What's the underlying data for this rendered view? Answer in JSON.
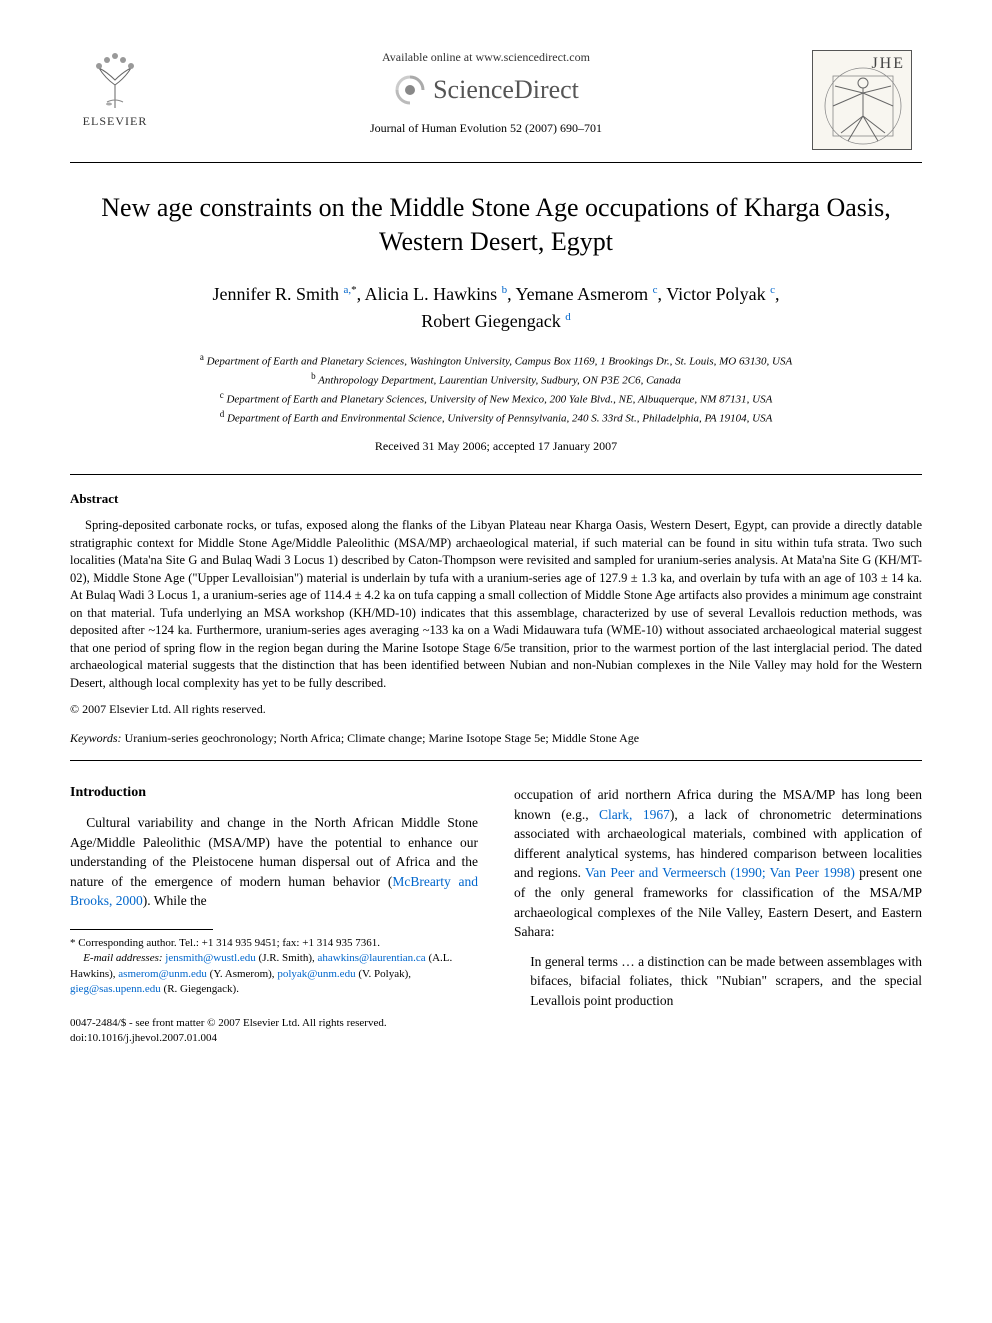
{
  "header": {
    "available_online": "Available online at www.sciencedirect.com",
    "scidirect": "ScienceDirect",
    "journal_ref": "Journal of Human Evolution 52 (2007) 690–701",
    "elsevier_label": "ELSEVIER",
    "jhe_abbrev": "JHE",
    "colors": {
      "link": "#0066cc",
      "text": "#000000",
      "muted": "#555555"
    }
  },
  "article": {
    "title": "New age constraints on the Middle Stone Age occupations of Kharga Oasis, Western Desert, Egypt",
    "authors_html": "Jennifer R. Smith <sup><a class='sup-link'>a,</a>*</sup>, Alicia L. Hawkins <sup><a class='sup-link'>b</a></sup>, Yemane Asmerom <sup><a class='sup-link'>c</a></sup>, Victor Polyak <sup><a class='sup-link'>c</a></sup>,<br>Robert Giegengack <sup><a class='sup-link'>d</a></sup>",
    "affiliations": [
      {
        "sup": "a",
        "text": "Department of Earth and Planetary Sciences, Washington University, Campus Box 1169, 1 Brookings Dr., St. Louis, MO 63130, USA"
      },
      {
        "sup": "b",
        "text": "Anthropology Department, Laurentian University, Sudbury, ON P3E 2C6, Canada"
      },
      {
        "sup": "c",
        "text": "Department of Earth and Planetary Sciences, University of New Mexico, 200 Yale Blvd., NE, Albuquerque, NM 87131, USA"
      },
      {
        "sup": "d",
        "text": "Department of Earth and Environmental Science, University of Pennsylvania, 240 S. 33rd St., Philadelphia, PA 19104, USA"
      }
    ],
    "received": "Received 31 May 2006; accepted 17 January 2007"
  },
  "abstract": {
    "label": "Abstract",
    "body": "Spring-deposited carbonate rocks, or tufas, exposed along the flanks of the Libyan Plateau near Kharga Oasis, Western Desert, Egypt, can provide a directly datable stratigraphic context for Middle Stone Age/Middle Paleolithic (MSA/MP) archaeological material, if such material can be found in situ within tufa strata. Two such localities (Mata'na Site G and Bulaq Wadi 3 Locus 1) described by Caton-Thompson were revisited and sampled for uranium-series analysis. At Mata'na Site G (KH/MT-02), Middle Stone Age (\"Upper Levalloisian\") material is underlain by tufa with a uranium-series age of 127.9 ± 1.3 ka, and overlain by tufa with an age of 103 ± 14 ka. At Bulaq Wadi 3 Locus 1, a uranium-series age of 114.4 ± 4.2 ka on tufa capping a small collection of Middle Stone Age artifacts also provides a minimum age constraint on that material. Tufa underlying an MSA workshop (KH/MD-10) indicates that this assemblage, characterized by use of several Levallois reduction methods, was deposited after ~124 ka. Furthermore, uranium-series ages averaging ~133 ka on a Wadi Midauwara tufa (WME-10) without associated archaeological material suggest that one period of spring flow in the region began during the Marine Isotope Stage 6/5e transition, prior to the warmest portion of the last interglacial period. The dated archaeological material suggests that the distinction that has been identified between Nubian and non-Nubian complexes in the Nile Valley may hold for the Western Desert, although local complexity has yet to be fully described.",
    "copyright": "© 2007 Elsevier Ltd. All rights reserved.",
    "keywords_label": "Keywords:",
    "keywords": "Uranium-series geochronology; North Africa; Climate change; Marine Isotope Stage 5e; Middle Stone Age"
  },
  "body": {
    "intro_heading": "Introduction",
    "col1_p1_a": "Cultural variability and change in the North African Middle Stone Age/Middle Paleolithic (MSA/MP) have the potential to enhance our understanding of the Pleistocene human dispersal out of Africa and the nature of the emergence of modern human behavior (",
    "col1_cite1": "McBrearty and Brooks, 2000",
    "col1_p1_b": "). While the",
    "col2_p1_a": "occupation of arid northern Africa during the MSA/MP has long been known (e.g., ",
    "col2_cite1": "Clark, 1967",
    "col2_p1_b": "), a lack of chronometric determinations associated with archaeological materials, combined with application of different analytical systems, has hindered comparison between localities and regions. ",
    "col2_cite2": "Van Peer and Vermeersch (1990; Van Peer 1998)",
    "col2_p1_c": " present one of the only general frameworks for classification of the MSA/MP archaeological complexes of the Nile Valley, Eastern Desert, and Eastern Sahara:",
    "col2_quote": "In general terms … a distinction can be made between assemblages with bifaces, bifacial foliates, thick \"Nubian\" scrapers, and the special Levallois point production"
  },
  "footnotes": {
    "corresponding": "* Corresponding author. Tel.: +1 314 935 9451; fax: +1 314 935 7361.",
    "email_label": "E-mail addresses:",
    "emails": [
      {
        "addr": "jensmith@wustl.edu",
        "who": "(J.R. Smith)"
      },
      {
        "addr": "ahawkins@laurentian.ca",
        "who": "(A.L. Hawkins)"
      },
      {
        "addr": "asmerom@unm.edu",
        "who": "(Y. Asmerom)"
      },
      {
        "addr": "polyak@unm.edu",
        "who": "(V. Polyak)"
      },
      {
        "addr": "gieg@sas.upenn.edu",
        "who": "(R. Giegengack)"
      }
    ]
  },
  "footer": {
    "issn_line": "0047-2484/$ - see front matter © 2007 Elsevier Ltd. All rights reserved.",
    "doi": "doi:10.1016/j.jhevol.2007.01.004"
  }
}
